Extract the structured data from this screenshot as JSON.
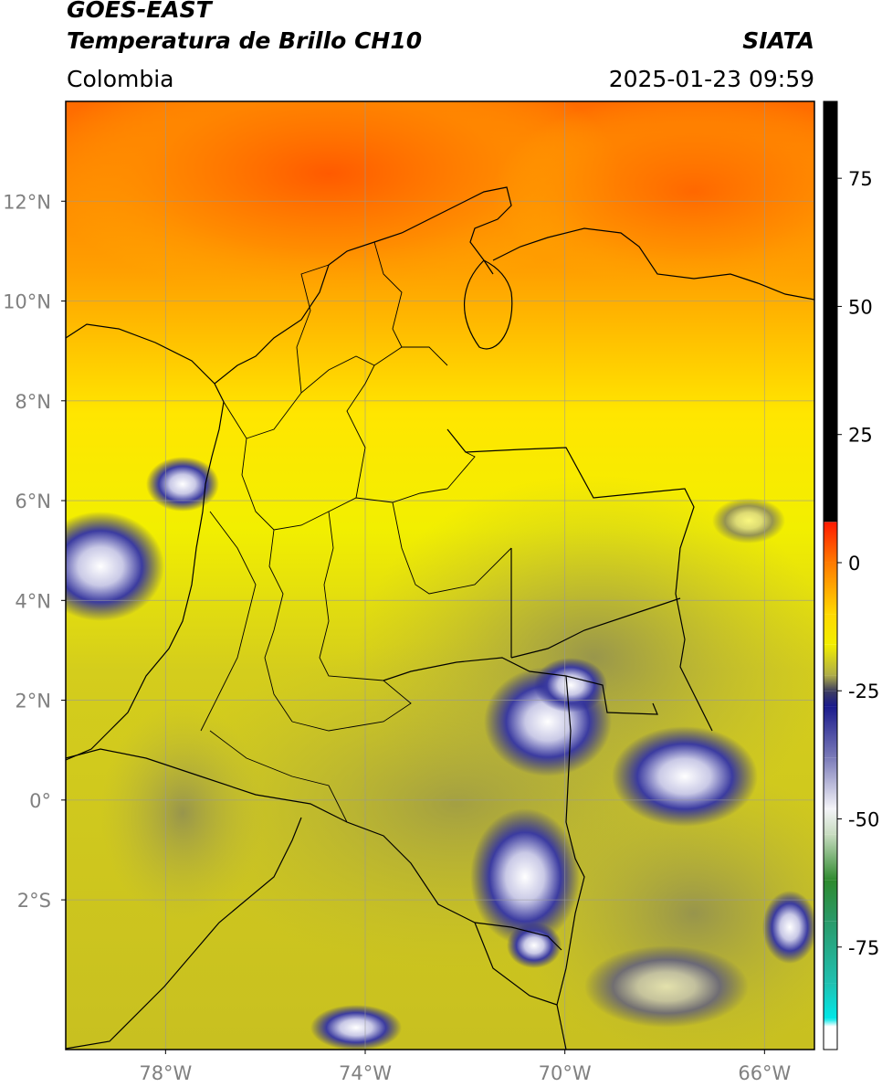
{
  "header": {
    "satellite": "GOES-EAST",
    "product": "Temperatura de Brillo CH10",
    "region": "Colombia",
    "agency": "SIATA",
    "timestamp": "2025-01-23 09:59"
  },
  "map": {
    "lon_range": [
      -80,
      -65
    ],
    "lat_range": [
      -5,
      14
    ],
    "lat_ticks": [
      {
        "value": 12,
        "label": "12°N"
      },
      {
        "value": 10,
        "label": "10°N"
      },
      {
        "value": 8,
        "label": "8°N"
      },
      {
        "value": 6,
        "label": "6°N"
      },
      {
        "value": 4,
        "label": "4°N"
      },
      {
        "value": 2,
        "label": "2°N"
      },
      {
        "value": 0,
        "label": "0°"
      },
      {
        "value": -2,
        "label": "2°S"
      }
    ],
    "lon_ticks": [
      {
        "value": -78,
        "label": "78°W"
      },
      {
        "value": -74,
        "label": "74°W"
      },
      {
        "value": -70,
        "label": "70°W"
      },
      {
        "value": -66,
        "label": "66°W"
      }
    ],
    "grid": true,
    "colors": {
      "grid": "#999999",
      "border": "#000000",
      "tick_label": "#808080"
    }
  },
  "colorbar": {
    "range": [
      -95,
      90
    ],
    "ticks": [
      {
        "value": 75,
        "label": "75"
      },
      {
        "value": 50,
        "label": "50"
      },
      {
        "value": 25,
        "label": "25"
      },
      {
        "value": 0,
        "label": "0"
      },
      {
        "value": -25,
        "label": "-25"
      },
      {
        "value": -50,
        "label": "-50"
      },
      {
        "value": -75,
        "label": "-75"
      }
    ],
    "stops": [
      {
        "value": 90,
        "color": "#000000"
      },
      {
        "value": 8,
        "color": "#000000"
      },
      {
        "value": 7.9,
        "color": "#ff1a00"
      },
      {
        "value": 0,
        "color": "#ff7a00"
      },
      {
        "value": -10,
        "color": "#ffd800"
      },
      {
        "value": -16,
        "color": "#f2ee00"
      },
      {
        "value": -22,
        "color": "#aeac48"
      },
      {
        "value": -25,
        "color": "#3e3e5e"
      },
      {
        "value": -28,
        "color": "#1a1a8c"
      },
      {
        "value": -38,
        "color": "#7a7ab8"
      },
      {
        "value": -48,
        "color": "#f4f4f8"
      },
      {
        "value": -53,
        "color": "#c8dcc0"
      },
      {
        "value": -62,
        "color": "#2e8a2e"
      },
      {
        "value": -70,
        "color": "#2a9a6a"
      },
      {
        "value": -82,
        "color": "#20c0b0"
      },
      {
        "value": -89,
        "color": "#00e8e8"
      },
      {
        "value": -90.5,
        "color": "#ffffff"
      },
      {
        "value": -95,
        "color": "#ffffff"
      }
    ]
  }
}
